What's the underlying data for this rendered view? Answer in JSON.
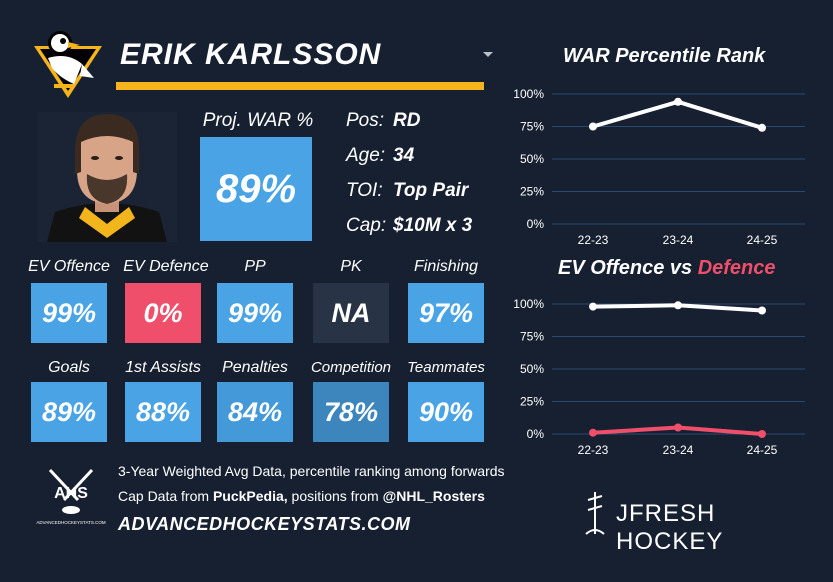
{
  "player": {
    "name": "ERIK KARLSSON"
  },
  "proj_war": {
    "label": "Proj. WAR %",
    "value": "89%"
  },
  "info": [
    {
      "label": "Pos:",
      "value": "RD"
    },
    {
      "label": "Age:",
      "value": "34"
    },
    {
      "label": "TOI:",
      "value": "Top Pair"
    },
    {
      "label": "Cap:",
      "value": "$10M x 3"
    }
  ],
  "tiles_row1": [
    {
      "label": "EV Offence",
      "value": "99%",
      "color": "#4aa3e4"
    },
    {
      "label": "EV Defence",
      "value": "0%",
      "color": "#ef4f6b"
    },
    {
      "label": "PP",
      "value": "99%",
      "color": "#4aa3e4"
    },
    {
      "label": "PK",
      "value": "NA",
      "color": "#283346"
    },
    {
      "label": "Finishing",
      "value": "97%",
      "color": "#4aa3e4"
    }
  ],
  "tiles_row2": [
    {
      "label": "Goals",
      "value": "89%",
      "color": "#4aa3e4"
    },
    {
      "label": "1st Assists",
      "value": "88%",
      "color": "#4aa3e4"
    },
    {
      "label": "Penalties",
      "value": "84%",
      "color": "#4499d8"
    },
    {
      "label": "Competition",
      "value": "78%",
      "color": "#3c86bd"
    },
    {
      "label": "Teammates",
      "value": "90%",
      "color": "#4aa3e4"
    }
  ],
  "footer": {
    "line1": "3-Year Weighted Avg Data, percentile ranking among forwards",
    "line2_prefix": "Cap Data from ",
    "line2_link1": "PuckPedia,",
    "line2_mid": " positions from ",
    "line2_link2": "@NHL_Rosters",
    "site": "ADVANCEDHOCKEYSTATS.COM",
    "ahs_logo_text": "AHS",
    "ahs_logo_sub": "ADVANCEDHOCKEYSTATS.COM",
    "brand": "JFRESH HOCKEY"
  },
  "colors": {
    "background": "#162031",
    "accent_gold": "#f5b41b",
    "blue": "#4aa3e4",
    "red": "#ef4f6b",
    "line_white": "#ffffff"
  },
  "icons": {
    "team_logo": "penguins-logo",
    "dropdown": "chevron-down-icon"
  },
  "chart_data": [
    {
      "type": "line",
      "title": "WAR Percentile Rank",
      "categories": [
        "22-23",
        "23-24",
        "24-25"
      ],
      "y_ticks": [
        "100%",
        "75%",
        "50%",
        "25%",
        "0%"
      ],
      "ylim": [
        0,
        100
      ],
      "series": [
        {
          "values": [
            75,
            94,
            74
          ],
          "color": "#ffffff"
        }
      ]
    },
    {
      "type": "line",
      "title_part1": "EV Offence vs ",
      "title_part2": "Defence",
      "categories": [
        "22-23",
        "23-24",
        "24-25"
      ],
      "y_ticks": [
        "100%",
        "75%",
        "50%",
        "25%",
        "0%"
      ],
      "ylim": [
        0,
        100
      ],
      "series": [
        {
          "values": [
            98,
            99,
            95
          ],
          "color": "#ffffff"
        },
        {
          "values": [
            1,
            5,
            0
          ],
          "color": "#ef4f6b"
        }
      ]
    }
  ]
}
